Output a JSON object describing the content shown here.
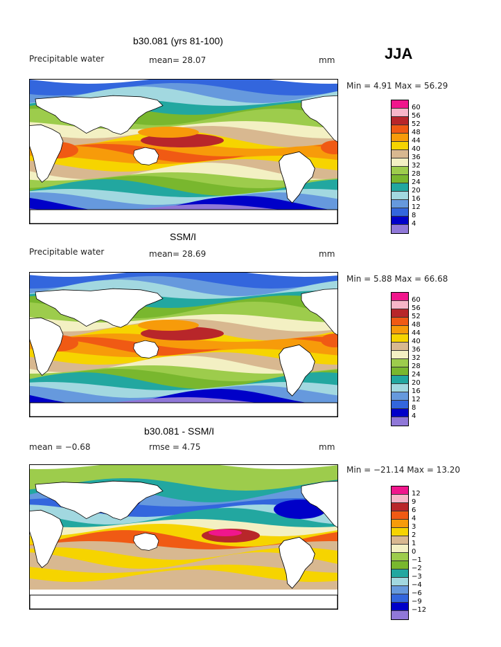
{
  "season": "JJA",
  "panels": [
    {
      "title": "b30.081 (yrs 81-100)",
      "left_label": "Precipitable water",
      "mean_label": "mean=  28.07",
      "units": "mm",
      "minmax": "Min =    4.91  Max =   56.29",
      "legend": {
        "ticks": [
          "60",
          "56",
          "52",
          "48",
          "44",
          "40",
          "36",
          "32",
          "28",
          "24",
          "20",
          "16",
          "12",
          "8",
          "4"
        ]
      }
    },
    {
      "title": "SSM/I",
      "left_label": "Precipitable water",
      "mean_label": "mean=  28.69",
      "units": "mm",
      "minmax": "Min =    5.88  Max =   66.68",
      "legend": {
        "ticks": [
          "60",
          "56",
          "52",
          "48",
          "44",
          "40",
          "36",
          "32",
          "28",
          "24",
          "20",
          "16",
          "12",
          "8",
          "4"
        ]
      }
    },
    {
      "title": "b30.081 - SSM/I",
      "left_label": "mean =   −0.68",
      "mean_label": "rmse =    4.75",
      "units": "mm",
      "minmax": "Min = −21.14  Max =   13.20",
      "legend": {
        "ticks": [
          "12",
          "9",
          "6",
          "4",
          "3",
          "2",
          "1",
          "0",
          "−1",
          "−2",
          "−3",
          "−4",
          "−6",
          "−9",
          "−12"
        ]
      }
    }
  ],
  "colors": {
    "scale": [
      "#f0168c",
      "#f7b6c8",
      "#b8262a",
      "#f05a14",
      "#f79b0a",
      "#f6d400",
      "#d8b890",
      "#f3f0c3",
      "#9dcc4c",
      "#79b72e",
      "#22a7a0",
      "#a2d8e0",
      "#6699dd",
      "#3366dd",
      "#0000c8",
      "#9078d8"
    ]
  }
}
